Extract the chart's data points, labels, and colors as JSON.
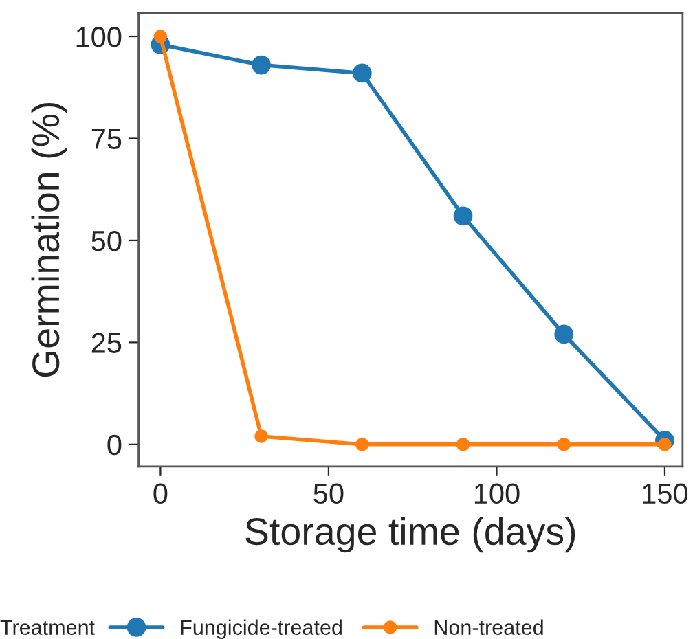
{
  "chart_data": {
    "type": "line",
    "xlabel": "Storage time (days)",
    "ylabel": "Germination (%)",
    "legend_title": "Treatment",
    "legend": "bottom",
    "marker": "circle",
    "line_style": "solid",
    "grid": false,
    "x": [
      0,
      30,
      60,
      90,
      120,
      150
    ],
    "series": [
      {
        "name": "Fungicide-treated",
        "color": "#1f77b4",
        "values": [
          98,
          93,
          91,
          56,
          27,
          1
        ]
      },
      {
        "name": "Non-treated",
        "color": "#ff7f0e",
        "values": [
          100,
          2,
          0,
          0,
          0,
          0
        ]
      }
    ],
    "xlim": [
      -6.5,
      155.3
    ],
    "ylim": [
      -5.4,
      105.8
    ],
    "xticks": [
      0,
      50,
      100,
      150
    ],
    "yticks": [
      0,
      25,
      50,
      75,
      100
    ]
  }
}
